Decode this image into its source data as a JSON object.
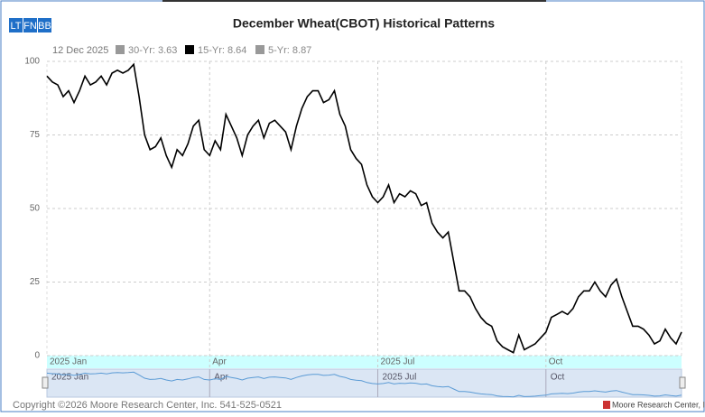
{
  "chart_data": {
    "type": "line",
    "title": "December Wheat(CBOT) Historical Patterns",
    "buttons": [
      "LT",
      "FN",
      "BB"
    ],
    "date_label": "12 Dec 2025",
    "legend": [
      {
        "name": "30-Yr: 3.63",
        "color": "#999999"
      },
      {
        "name": "15-Yr: 8.64",
        "color": "#000000"
      },
      {
        "name": "5-Yr: 8.87",
        "color": "#999999"
      }
    ],
    "color": "#000000",
    "categories": [
      "2025 Jan",
      null,
      null,
      null,
      null,
      null,
      null,
      null,
      null,
      null,
      null,
      null,
      null,
      null,
      null,
      null,
      null,
      null,
      null,
      null,
      null,
      null,
      null,
      null,
      null,
      null,
      null,
      null,
      null,
      null,
      "Apr",
      null,
      null,
      null,
      null,
      null,
      null,
      null,
      null,
      null,
      null,
      null,
      null,
      null,
      null,
      null,
      null,
      null,
      null,
      null,
      null,
      null,
      null,
      null,
      null,
      null,
      null,
      null,
      null,
      null,
      null,
      "2025 Jul",
      null,
      null,
      null,
      null,
      null,
      null,
      null,
      null,
      null,
      null,
      null,
      null,
      null,
      null,
      null,
      null,
      null,
      null,
      null,
      null,
      null,
      null,
      null,
      null,
      null,
      null,
      null,
      null,
      null,
      null,
      "Oct",
      null,
      null,
      null,
      null,
      null,
      null,
      null,
      null,
      null,
      null,
      null,
      null,
      null,
      null,
      null,
      null,
      null,
      null,
      null,
      null,
      null,
      null,
      null,
      null,
      null
    ],
    "values": [
      95,
      93,
      92,
      88,
      90,
      86,
      90,
      95,
      92,
      93,
      95,
      92,
      96,
      97,
      96,
      97,
      99,
      88,
      75,
      70,
      71,
      74,
      68,
      64,
      70,
      68,
      72,
      78,
      80,
      70,
      68,
      73,
      70,
      82,
      78,
      74,
      68,
      75,
      78,
      80,
      74,
      79,
      80,
      78,
      76,
      70,
      78,
      84,
      88,
      90,
      90,
      86,
      87,
      90,
      82,
      78,
      70,
      67,
      65,
      58,
      54,
      52,
      54,
      58,
      52,
      55,
      54,
      56,
      55,
      51,
      52,
      45,
      42,
      40,
      42,
      32,
      22,
      22,
      20,
      16,
      13,
      11,
      10,
      5,
      3,
      2,
      1,
      7,
      2,
      3,
      4,
      6,
      8,
      13,
      14,
      15,
      14,
      16,
      20,
      22,
      22,
      25,
      22,
      20,
      24,
      26,
      20,
      15,
      10,
      10,
      9,
      7,
      4,
      5,
      9,
      6,
      4,
      8
    ],
    "ylim": [
      0,
      100
    ],
    "yticks": [
      0,
      25,
      50,
      75,
      100
    ],
    "grid": true,
    "footer": "Copyright ©2026 Moore Research Center, Inc. 541-525-0521",
    "brand": "Moore Research Center, Inc."
  }
}
